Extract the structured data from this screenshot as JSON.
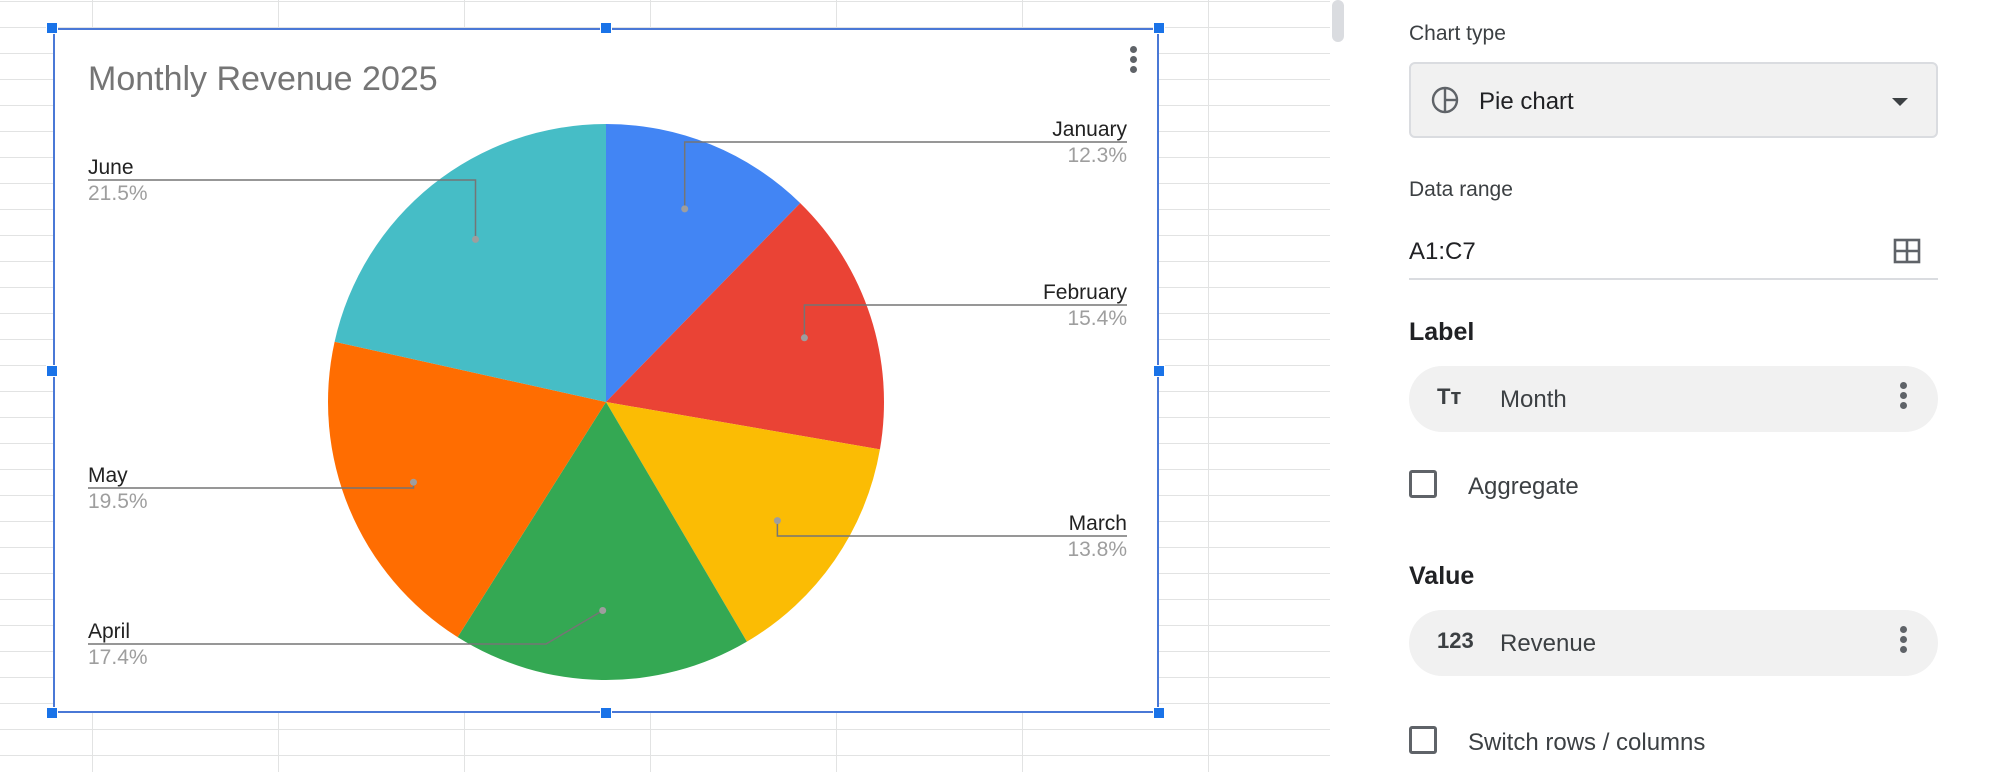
{
  "chart": {
    "title": "Monthly Revenue 2025",
    "menu_icon": "more-vert-icon"
  },
  "chart_data": {
    "type": "pie",
    "title": "Monthly Revenue 2025",
    "categories": [
      "January",
      "February",
      "March",
      "April",
      "May",
      "June"
    ],
    "values": [
      12.3,
      15.4,
      13.8,
      17.4,
      19.5,
      21.5
    ],
    "labels": [
      "12.3%",
      "15.4%",
      "13.8%",
      "17.4%",
      "19.5%",
      "21.5%"
    ],
    "colors": [
      "#4285f4",
      "#ea4335",
      "#fbbc04",
      "#34a853",
      "#ff6d01",
      "#46bdc6"
    ],
    "legend": "labeled slices"
  },
  "panel": {
    "chart_type": {
      "label": "Chart type",
      "value": "Pie chart",
      "icon": "pie-chart-icon"
    },
    "data_range": {
      "label": "Data range",
      "value": "A1:C7",
      "icon": "grid-select-icon"
    },
    "label_section": {
      "title": "Label",
      "field": "Month",
      "icon": "text-type-icon",
      "icon_text": "Tт"
    },
    "aggregate": "Aggregate",
    "value_section": {
      "title": "Value",
      "field": "Revenue",
      "icon": "number-type-icon",
      "icon_text": "123"
    },
    "switch_rows": "Switch rows / columns"
  }
}
